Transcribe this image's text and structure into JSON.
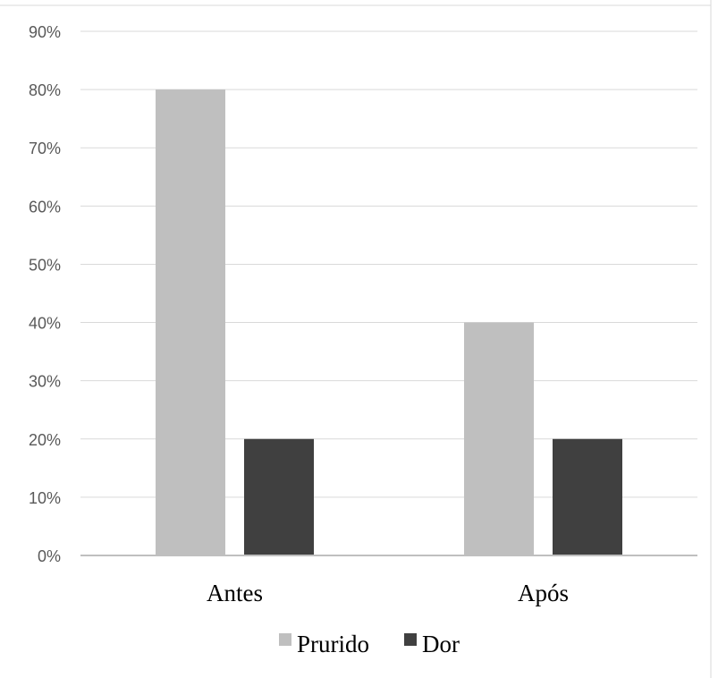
{
  "chart_data": {
    "type": "bar",
    "title": "",
    "xlabel": "",
    "ylabel": "",
    "categories": [
      "Antes",
      "Após"
    ],
    "series": [
      {
        "name": "Prurido",
        "values": [
          80,
          40
        ],
        "color": "#bfbfbf"
      },
      {
        "name": "Dor",
        "values": [
          20,
          20
        ],
        "color": "#404040"
      }
    ],
    "yticks": [
      "0%",
      "10%",
      "20%",
      "30%",
      "40%",
      "50%",
      "60%",
      "70%",
      "80%",
      "90%"
    ],
    "ylim": [
      0,
      90
    ],
    "grid": true,
    "legend": "bottom",
    "gridColor": "#d9d9d9",
    "axisColor": "#bfbfbf"
  }
}
